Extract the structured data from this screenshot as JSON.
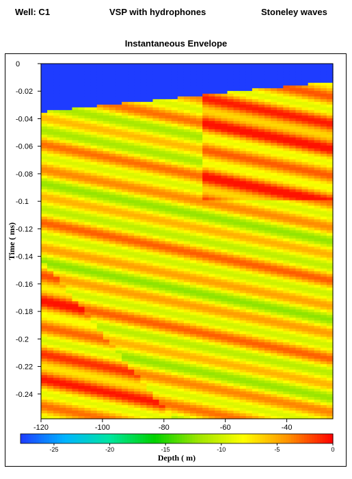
{
  "header": {
    "well": "Well: C1",
    "method": "VSP with hydrophones",
    "wave_type": "Stoneley waves"
  },
  "chart_data": {
    "type": "heatmap",
    "title": "Instantaneous Envelope",
    "xlabel": "Depth ( m)",
    "ylabel": "Time ( ms)",
    "xlim": [
      -120,
      -25
    ],
    "ylim": [
      -0.258,
      0
    ],
    "x_ticks": [
      "-120",
      "-100",
      "-80",
      "-60",
      "-40"
    ],
    "y_ticks": [
      "0",
      "-0.02",
      "-0.04",
      "-0.06",
      "-0.08",
      "-0.1",
      "-0.12",
      "-0.14",
      "-0.16",
      "-0.18",
      "-0.2",
      "-0.22",
      "-0.24"
    ],
    "colorbar": {
      "range": [
        -28,
        0
      ],
      "ticks": [
        "-25",
        "-20",
        "-15",
        "-10",
        "-5",
        "0"
      ],
      "colors": [
        "#1e3cff",
        "#00b4ff",
        "#00e6a0",
        "#00d200",
        "#a0e600",
        "#ffff00",
        "#ff9000",
        "#ff0000"
      ]
    },
    "background_level": -28,
    "first_arrival_time": [
      {
        "depth": -120,
        "time": -0.035
      },
      {
        "depth": -25,
        "time": -0.013
      }
    ]
  }
}
